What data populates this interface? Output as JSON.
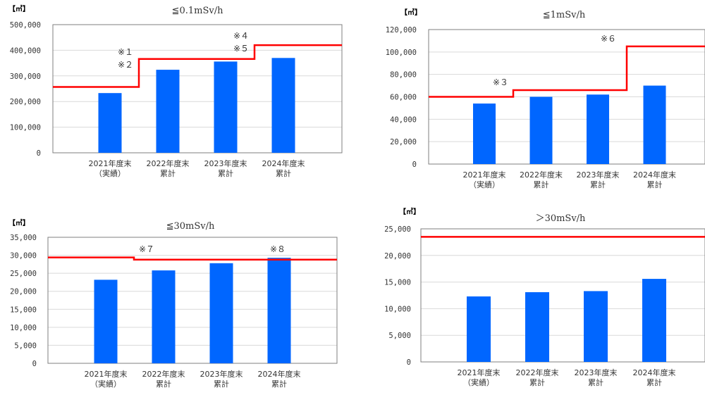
{
  "chart_data": [
    {
      "type": "bar",
      "title": "≦0.1mSv/h",
      "unit": "【㎥】",
      "categories": [
        [
          "2021年度末",
          "（実績）"
        ],
        [
          "2022年度末",
          "累計"
        ],
        [
          "2023年度末",
          "累計"
        ],
        [
          "2024年度末",
          "累計"
        ]
      ],
      "values": [
        233000,
        324000,
        356000,
        370000
      ],
      "ylim": [
        0,
        500000
      ],
      "yticks": [
        "0",
        "100,000",
        "200,000",
        "300,000",
        "400,000",
        "500,000"
      ],
      "bar_color": "#0066ff",
      "limit_line": {
        "color": "#ff0000",
        "values": [
          257000,
          366000,
          366000,
          420000
        ],
        "notes": [
          [
            "※１",
            "※２"
          ],
          [
            "※４",
            "※５"
          ]
        ]
      }
    },
    {
      "type": "bar",
      "title": "≦1mSv/h",
      "unit": "【㎥】",
      "categories": [
        [
          "2021年度末",
          "（実績）"
        ],
        [
          "2022年度末",
          "累計"
        ],
        [
          "2023年度末",
          "累計"
        ],
        [
          "2024年度末",
          "累計"
        ]
      ],
      "values": [
        54000,
        60000,
        62000,
        70000
      ],
      "ylim": [
        0,
        120000
      ],
      "yticks": [
        "0",
        "20,000",
        "40,000",
        "60,000",
        "80,000",
        "100,000",
        "120,000"
      ],
      "bar_color": "#0066ff",
      "limit_line": {
        "color": "#ff0000",
        "values": [
          60000,
          66000,
          66000,
          105000
        ],
        "notes": [
          [
            "※３"
          ],
          [
            "※６"
          ]
        ]
      }
    },
    {
      "type": "bar",
      "title": "≦30mSv/h",
      "unit": "【㎥】",
      "categories": [
        [
          "2021年度末",
          "（実績）"
        ],
        [
          "2022年度末",
          "累計"
        ],
        [
          "2023年度末",
          "累計"
        ],
        [
          "2024年度末",
          "累計"
        ]
      ],
      "values": [
        23200,
        25800,
        27800,
        29300
      ],
      "ylim": [
        0,
        35000
      ],
      "yticks": [
        "0",
        "5,000",
        "10,000",
        "15,000",
        "20,000",
        "25,000",
        "30,000",
        "35,000"
      ],
      "bar_color": "#0066ff",
      "limit_line": {
        "color": "#ff0000",
        "values": [
          29400,
          28800,
          28800,
          28800
        ],
        "notes": [
          [
            "※７"
          ],
          [
            "※８"
          ]
        ]
      }
    },
    {
      "type": "bar",
      "title": "＞30mSv/h",
      "unit": "【㎥】",
      "categories": [
        [
          "2021年度末",
          "（実績）"
        ],
        [
          "2022年度末",
          "累計"
        ],
        [
          "2023年度末",
          "累計"
        ],
        [
          "2024年度末",
          "累計"
        ]
      ],
      "values": [
        12300,
        13100,
        13300,
        15600
      ],
      "ylim": [
        0,
        25000
      ],
      "yticks": [
        "0",
        "5,000",
        "10,000",
        "15,000",
        "20,000",
        "25,000"
      ],
      "bar_color": "#0066ff",
      "limit_line": {
        "color": "#ff0000",
        "values": [
          23500,
          23500,
          23500,
          23500
        ],
        "notes": []
      }
    }
  ]
}
